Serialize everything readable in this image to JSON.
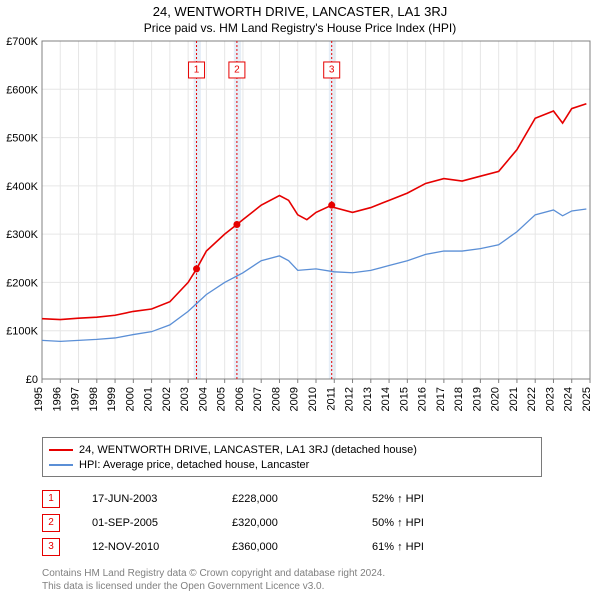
{
  "title_line1": "24, WENTWORTH DRIVE, LANCASTER, LA1 3RJ",
  "title_line2": "Price paid vs. HM Land Registry's House Price Index (HPI)",
  "chart": {
    "type": "line",
    "background_color": "#ffffff",
    "plot_bg": "#ffffff",
    "grid_color": "#e6e6e6",
    "axis_color": "#808080",
    "y": {
      "min": 0,
      "max": 700000,
      "step": 100000,
      "labels": [
        "£0",
        "£100K",
        "£200K",
        "£300K",
        "£400K",
        "£500K",
        "£600K",
        "£700K"
      ]
    },
    "x": {
      "min": 1995,
      "max": 2025,
      "step": 1,
      "labels": [
        "1995",
        "1996",
        "1997",
        "1998",
        "1999",
        "2000",
        "2001",
        "2002",
        "2003",
        "2004",
        "2005",
        "2006",
        "2007",
        "2008",
        "2009",
        "2010",
        "2011",
        "2012",
        "2013",
        "2014",
        "2015",
        "2016",
        "2017",
        "2018",
        "2019",
        "2020",
        "2021",
        "2022",
        "2023",
        "2024",
        "2025"
      ]
    },
    "shaded_bands": [
      {
        "from": 2003.3,
        "to": 2003.7,
        "color": "#e6eef7"
      },
      {
        "from": 2005.5,
        "to": 2005.9,
        "color": "#e6eef7"
      },
      {
        "from": 2010.7,
        "to": 2011.1,
        "color": "#e6eef7"
      }
    ],
    "series": [
      {
        "name": "property",
        "color": "#e60000",
        "width": 1.6,
        "data": [
          [
            1995,
            125000
          ],
          [
            1996,
            123000
          ],
          [
            1997,
            126000
          ],
          [
            1998,
            128000
          ],
          [
            1999,
            132000
          ],
          [
            2000,
            140000
          ],
          [
            2001,
            145000
          ],
          [
            2002,
            160000
          ],
          [
            2003,
            200000
          ],
          [
            2003.46,
            228000
          ],
          [
            2004,
            265000
          ],
          [
            2005,
            300000
          ],
          [
            2005.67,
            320000
          ],
          [
            2006,
            330000
          ],
          [
            2007,
            360000
          ],
          [
            2008,
            380000
          ],
          [
            2008.5,
            370000
          ],
          [
            2009,
            340000
          ],
          [
            2009.5,
            330000
          ],
          [
            2010,
            345000
          ],
          [
            2010.86,
            360000
          ],
          [
            2011,
            355000
          ],
          [
            2012,
            345000
          ],
          [
            2013,
            355000
          ],
          [
            2014,
            370000
          ],
          [
            2015,
            385000
          ],
          [
            2016,
            405000
          ],
          [
            2017,
            415000
          ],
          [
            2018,
            410000
          ],
          [
            2019,
            420000
          ],
          [
            2020,
            430000
          ],
          [
            2021,
            475000
          ],
          [
            2022,
            540000
          ],
          [
            2023,
            555000
          ],
          [
            2023.5,
            530000
          ],
          [
            2024,
            560000
          ],
          [
            2024.8,
            570000
          ]
        ]
      },
      {
        "name": "hpi",
        "color": "#5b8fd6",
        "width": 1.3,
        "data": [
          [
            1995,
            80000
          ],
          [
            1996,
            78000
          ],
          [
            1997,
            80000
          ],
          [
            1998,
            82000
          ],
          [
            1999,
            85000
          ],
          [
            2000,
            92000
          ],
          [
            2001,
            98000
          ],
          [
            2002,
            112000
          ],
          [
            2003,
            140000
          ],
          [
            2004,
            175000
          ],
          [
            2005,
            200000
          ],
          [
            2006,
            220000
          ],
          [
            2007,
            245000
          ],
          [
            2008,
            255000
          ],
          [
            2008.5,
            245000
          ],
          [
            2009,
            225000
          ],
          [
            2010,
            228000
          ],
          [
            2011,
            222000
          ],
          [
            2012,
            220000
          ],
          [
            2013,
            225000
          ],
          [
            2014,
            235000
          ],
          [
            2015,
            245000
          ],
          [
            2016,
            258000
          ],
          [
            2017,
            265000
          ],
          [
            2018,
            265000
          ],
          [
            2019,
            270000
          ],
          [
            2020,
            278000
          ],
          [
            2021,
            305000
          ],
          [
            2022,
            340000
          ],
          [
            2023,
            350000
          ],
          [
            2023.5,
            338000
          ],
          [
            2024,
            348000
          ],
          [
            2024.8,
            352000
          ]
        ]
      }
    ],
    "sale_markers": [
      {
        "label": "1",
        "x": 2003.46,
        "y": 228000,
        "label_y": 640000
      },
      {
        "label": "2",
        "x": 2005.67,
        "y": 320000,
        "label_y": 640000
      },
      {
        "label": "3",
        "x": 2010.86,
        "y": 360000,
        "label_y": 640000
      }
    ],
    "marker_line_color": "#e60000",
    "marker_dot_color": "#e60000",
    "marker_box_border": "#e60000"
  },
  "legend": [
    {
      "color": "#e60000",
      "label": "24, WENTWORTH DRIVE, LANCASTER, LA1 3RJ (detached house)"
    },
    {
      "color": "#5b8fd6",
      "label": "HPI: Average price, detached house, Lancaster"
    }
  ],
  "sales": [
    {
      "n": "1",
      "date": "17-JUN-2003",
      "price": "£228,000",
      "pct": "52% ↑ HPI"
    },
    {
      "n": "2",
      "date": "01-SEP-2005",
      "price": "£320,000",
      "pct": "50% ↑ HPI"
    },
    {
      "n": "3",
      "date": "12-NOV-2010",
      "price": "£360,000",
      "pct": "61% ↑ HPI"
    }
  ],
  "footnote_line1": "Contains HM Land Registry data © Crown copyright and database right 2024.",
  "footnote_line2": "This data is licensed under the Open Government Licence v3.0."
}
